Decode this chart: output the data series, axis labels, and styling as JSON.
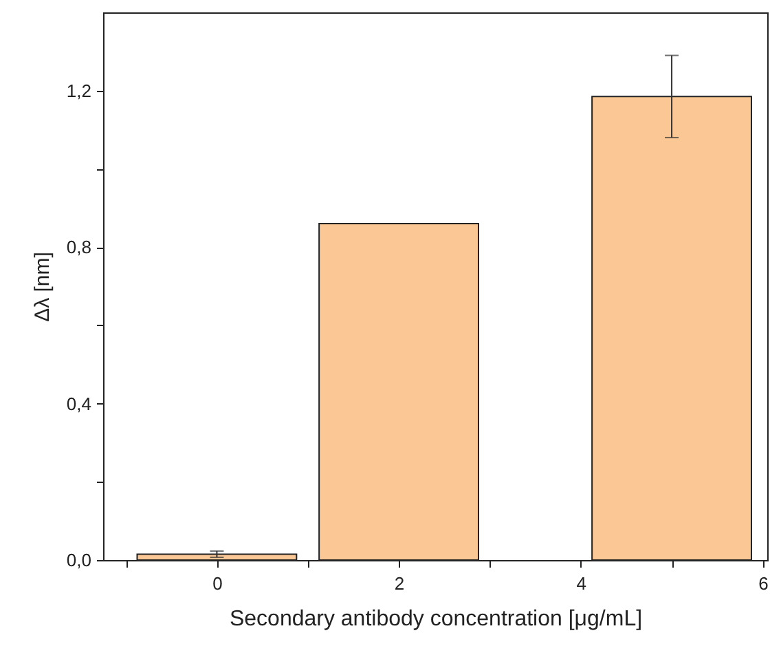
{
  "chart_data": {
    "type": "bar",
    "xlabel": "Secondary antibody concentration [μg/mL]",
    "ylabel": "Δλ [nm]",
    "x": [
      0,
      2,
      5
    ],
    "values": [
      0.015,
      0.86,
      1.185
    ],
    "errors": [
      0.008,
      null,
      0.105
    ],
    "color": "#fbc895",
    "xlim": [
      -1.25,
      6.05
    ],
    "xticks": [
      {
        "value": -1,
        "label": null
      },
      0,
      {
        "value": 1,
        "label": null
      },
      2,
      {
        "value": 3,
        "label": null
      },
      4,
      {
        "value": 5,
        "label": null
      },
      6
    ],
    "ylim": [
      0,
      1.4
    ],
    "yticks": [
      {
        "value": 0,
        "label": "0,0"
      },
      {
        "value": 0.2,
        "label": null
      },
      {
        "value": 0.4,
        "label": "0,4"
      },
      {
        "value": 0.6,
        "label": null
      },
      {
        "value": 0.8,
        "label": "0,8"
      },
      {
        "value": 1.0,
        "label": null
      },
      {
        "value": 1.2,
        "label": "1,2"
      }
    ],
    "grid": false
  }
}
